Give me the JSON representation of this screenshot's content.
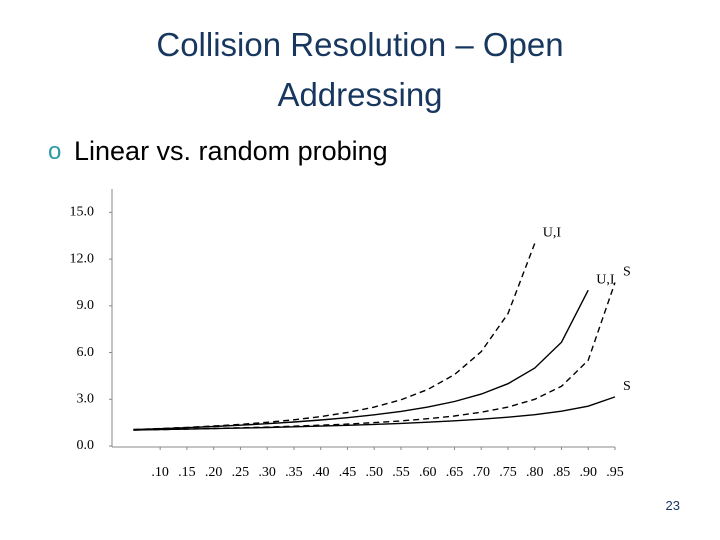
{
  "slide": {
    "title": "Collision Resolution – Open Addressing",
    "bullet_marker": "o",
    "bullet": "Linear vs. random probing",
    "page_number": "23"
  },
  "chart_data": {
    "type": "line",
    "x": [
      0.05,
      0.1,
      0.15,
      0.2,
      0.25,
      0.3,
      0.35,
      0.4,
      0.45,
      0.5,
      0.55,
      0.6,
      0.65,
      0.7,
      0.75,
      0.8,
      0.85,
      0.9,
      0.95
    ],
    "series": [
      {
        "name": "U,I",
        "color": "#000000",
        "dash": "dashed",
        "values": [
          1.054,
          1.117,
          1.192,
          1.281,
          1.389,
          1.52,
          1.683,
          1.889,
          2.153,
          2.5,
          2.969,
          3.625,
          4.582,
          6.056,
          8.5,
          13,
          null,
          null,
          null
        ]
      },
      {
        "name": "U,I",
        "color": "#000000",
        "dash": "solid",
        "values": [
          1.053,
          1.111,
          1.176,
          1.25,
          1.333,
          1.429,
          1.538,
          1.667,
          1.818,
          2,
          2.222,
          2.5,
          2.857,
          3.333,
          4,
          5,
          6.667,
          10,
          null
        ]
      },
      {
        "name": "S",
        "color": "#000000",
        "dash": "dashed",
        "values": [
          1.026,
          1.056,
          1.088,
          1.125,
          1.167,
          1.214,
          1.269,
          1.333,
          1.409,
          1.5,
          1.611,
          1.75,
          1.929,
          2.167,
          2.5,
          3,
          3.833,
          5.5,
          10.5
        ]
      },
      {
        "name": "S",
        "color": "#000000",
        "dash": "solid",
        "values": [
          1.026,
          1.054,
          1.083,
          1.116,
          1.151,
          1.189,
          1.231,
          1.277,
          1.329,
          1.386,
          1.452,
          1.527,
          1.615,
          1.72,
          1.848,
          2.012,
          2.232,
          2.558,
          3.153
        ]
      }
    ],
    "xlim": [
      0.01,
      0.95
    ],
    "ylim": [
      0,
      16.5
    ],
    "xticks": [
      {
        "value": 0.1,
        "label": ".10"
      },
      {
        "value": 0.15,
        "label": ".15"
      },
      {
        "value": 0.2,
        "label": ".20"
      },
      {
        "value": 0.25,
        "label": ".25"
      },
      {
        "value": 0.3,
        "label": ".30"
      },
      {
        "value": 0.35,
        "label": ".35"
      },
      {
        "value": 0.4,
        "label": ".40"
      },
      {
        "value": 0.45,
        "label": ".45"
      },
      {
        "value": 0.5,
        "label": ".50"
      },
      {
        "value": 0.55,
        "label": ".55"
      },
      {
        "value": 0.6,
        "label": ".60"
      },
      {
        "value": 0.65,
        "label": ".65"
      },
      {
        "value": 0.7,
        "label": ".70"
      },
      {
        "value": 0.75,
        "label": ".75"
      },
      {
        "value": 0.8,
        "label": ".80"
      },
      {
        "value": 0.85,
        "label": ".85"
      },
      {
        "value": 0.9,
        "label": ".90"
      },
      {
        "value": 0.95,
        "label": ".95"
      }
    ],
    "yticks": [
      {
        "value": 0,
        "label": "0.0"
      },
      {
        "value": 3,
        "label": "3.0"
      },
      {
        "value": 6,
        "label": "6.0"
      },
      {
        "value": 9,
        "label": "9.0"
      },
      {
        "value": 12,
        "label": "12.0"
      },
      {
        "value": 15,
        "label": "15.0"
      }
    ],
    "grid": false
  }
}
